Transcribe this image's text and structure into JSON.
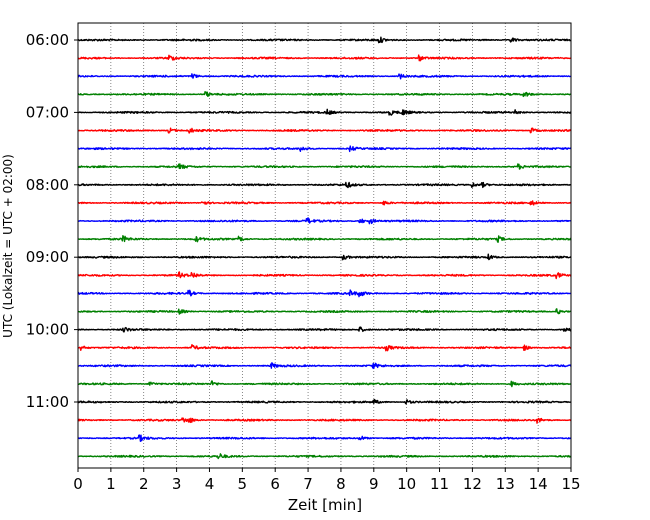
{
  "chart_data": {
    "type": "line",
    "title": "",
    "xlabel": "Zeit  [min]",
    "ylabel": "UTC (Lokalzeit = UTC + 02:00)",
    "xlim": [
      0,
      15
    ],
    "x_ticks": [
      0,
      1,
      2,
      3,
      4,
      5,
      6,
      7,
      8,
      9,
      10,
      11,
      12,
      13,
      14,
      15
    ],
    "x_tick_labels": [
      "0",
      "1",
      "2",
      "3",
      "4",
      "5",
      "6",
      "7",
      "8",
      "9",
      "10",
      "11",
      "12",
      "13",
      "14",
      "15"
    ],
    "y_tick_labels": [
      "06:00",
      "07:00",
      "08:00",
      "09:00",
      "10:00",
      "11:00"
    ],
    "vertical_grid": "dotted",
    "trace_colors": [
      "#000000",
      "#ff0000",
      "#0000ff",
      "#008000"
    ],
    "trace_start_times": [
      "06:00",
      "06:15",
      "06:30",
      "06:45",
      "07:00",
      "07:15",
      "07:30",
      "07:45",
      "08:00",
      "08:15",
      "08:30",
      "08:45",
      "09:00",
      "09:15",
      "09:30",
      "09:45",
      "10:00",
      "10:15",
      "10:30",
      "10:45",
      "11:00",
      "11:15",
      "11:30",
      "11:45"
    ],
    "series": [
      {
        "start": "06:00",
        "color": "#000000",
        "events_min": [
          9.2,
          13.2
        ]
      },
      {
        "start": "06:15",
        "color": "#ff0000",
        "events_min": [
          2.8,
          10.4
        ]
      },
      {
        "start": "06:30",
        "color": "#0000ff",
        "events_min": [
          3.5,
          9.8
        ]
      },
      {
        "start": "06:45",
        "color": "#008000",
        "events_min": [
          3.9,
          13.6
        ]
      },
      {
        "start": "07:00",
        "color": "#000000",
        "events_min": [
          7.6,
          9.5,
          9.9,
          13.3
        ]
      },
      {
        "start": "07:15",
        "color": "#ff0000",
        "events_min": [
          2.8,
          3.4,
          13.8
        ]
      },
      {
        "start": "07:30",
        "color": "#0000ff",
        "events_min": [
          6.8,
          8.3
        ]
      },
      {
        "start": "07:45",
        "color": "#008000",
        "events_min": [
          3.1,
          13.4
        ]
      },
      {
        "start": "08:00",
        "color": "#000000",
        "events_min": [
          8.2,
          12.0,
          12.3
        ]
      },
      {
        "start": "08:15",
        "color": "#ff0000",
        "events_min": [
          3.8,
          9.3,
          13.8
        ]
      },
      {
        "start": "08:30",
        "color": "#0000ff",
        "events_min": [
          7.0,
          8.6,
          8.9
        ]
      },
      {
        "start": "08:45",
        "color": "#008000",
        "events_min": [
          1.4,
          3.6,
          4.9,
          12.8
        ]
      },
      {
        "start": "09:00",
        "color": "#000000",
        "events_min": [
          8.1,
          12.5
        ]
      },
      {
        "start": "09:15",
        "color": "#ff0000",
        "events_min": [
          3.1,
          3.5,
          14.6
        ]
      },
      {
        "start": "09:30",
        "color": "#0000ff",
        "events_min": [
          3.4,
          8.3,
          8.6
        ]
      },
      {
        "start": "09:45",
        "color": "#008000",
        "events_min": [
          3.1,
          14.6
        ]
      },
      {
        "start": "10:00",
        "color": "#000000",
        "events_min": [
          1.4,
          8.6,
          14.8
        ]
      },
      {
        "start": "10:15",
        "color": "#ff0000",
        "events_min": [
          0.1,
          3.5,
          9.4,
          13.6
        ]
      },
      {
        "start": "10:30",
        "color": "#0000ff",
        "events_min": [
          5.9,
          9.0
        ]
      },
      {
        "start": "10:45",
        "color": "#008000",
        "events_min": [
          2.2,
          4.1,
          13.2
        ]
      },
      {
        "start": "11:00",
        "color": "#000000",
        "events_min": [
          9.0,
          10.0
        ]
      },
      {
        "start": "11:15",
        "color": "#ff0000",
        "events_min": [
          3.2,
          3.4,
          14.0
        ]
      },
      {
        "start": "11:30",
        "color": "#0000ff",
        "events_min": [
          1.9,
          8.6
        ]
      },
      {
        "start": "11:45",
        "color": "#008000",
        "events_min": [
          4.3
        ]
      }
    ]
  }
}
